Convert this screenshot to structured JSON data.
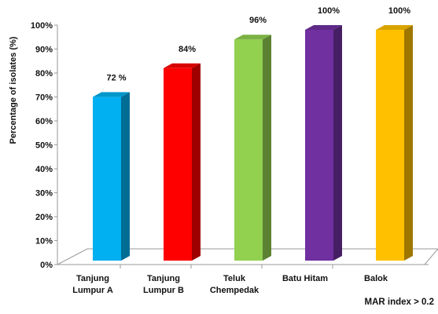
{
  "chart_data": {
    "type": "bar",
    "categories": [
      [
        "Tanjung",
        "Lumpur A"
      ],
      [
        "Tanjung",
        "Lumpur B"
      ],
      [
        "Teluk",
        "Chempedak"
      ],
      [
        "Batu Hitam"
      ],
      [
        "Balok"
      ]
    ],
    "values": [
      72,
      84,
      96,
      100,
      100
    ],
    "data_labels": [
      "72 %",
      "84%",
      "96%",
      "100%",
      "100%"
    ],
    "colors": [
      "#00b0f0",
      "#ff0000",
      "#92d050",
      "#7030a0",
      "#ffc000"
    ],
    "ylabel": "Percentage of isolates (%)",
    "xnote": "MAR index > 0.2",
    "yticks": [
      "0%",
      "10%",
      "20%",
      "30%",
      "40%",
      "50%",
      "60%",
      "70%",
      "80%",
      "90%",
      "100%"
    ],
    "ylim": [
      0,
      100
    ],
    "grid": false,
    "legend": "none",
    "style": "3d"
  }
}
